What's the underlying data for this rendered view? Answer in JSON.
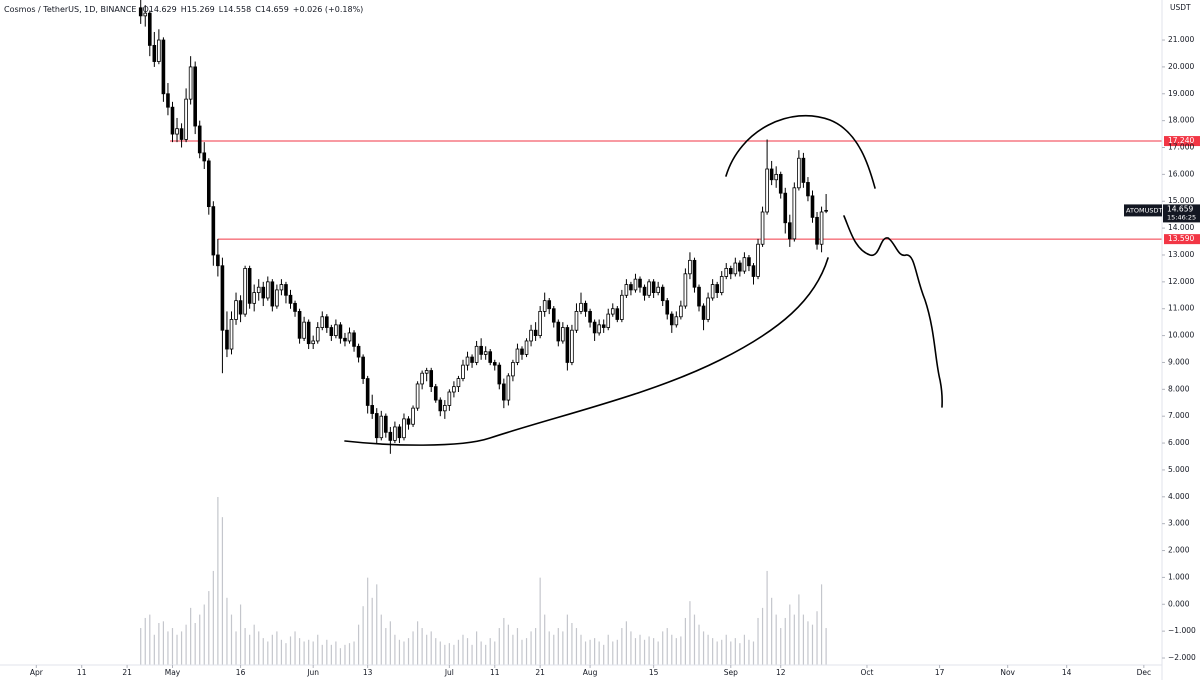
{
  "chart_data": {
    "type": "candlestick",
    "legend": {
      "symbol": "Cosmos / TetherUS, 1D, BINANCE",
      "open": "O14.629",
      "high": "H15.269",
      "low": "L14.558",
      "close": "C14.659",
      "change": "+0.026 (+0.18%)"
    },
    "currency": "USDT",
    "up_color": "#ffffff",
    "down_color": "#000000",
    "volume_color": "#c4c6cc",
    "x": [
      "04-24",
      "04-25",
      "04-26",
      "04-27",
      "04-28",
      "04-29",
      "04-30",
      "05-01",
      "05-02",
      "05-03",
      "05-04",
      "05-05",
      "05-06",
      "05-07",
      "05-08",
      "05-09",
      "05-10",
      "05-11",
      "05-12",
      "05-13",
      "05-14",
      "05-15",
      "05-16",
      "05-17",
      "05-18",
      "05-19",
      "05-20",
      "05-21",
      "05-22",
      "05-23",
      "05-24",
      "05-25",
      "05-26",
      "05-27",
      "05-28",
      "05-29",
      "05-30",
      "05-31",
      "06-01",
      "06-02",
      "06-03",
      "06-04",
      "06-05",
      "06-06",
      "06-07",
      "06-08",
      "06-09",
      "06-10",
      "06-11",
      "06-12",
      "06-13",
      "06-14",
      "06-15",
      "06-16",
      "06-17",
      "06-18",
      "06-19",
      "06-20",
      "06-21",
      "06-22",
      "06-23",
      "06-24",
      "06-25",
      "06-26",
      "06-27",
      "06-28",
      "06-29",
      "06-30",
      "07-01",
      "07-02",
      "07-03",
      "07-04",
      "07-05",
      "07-06",
      "07-07",
      "07-08",
      "07-09",
      "07-10",
      "07-11",
      "07-12",
      "07-13",
      "07-14",
      "07-15",
      "07-16",
      "07-17",
      "07-18",
      "07-19",
      "07-20",
      "07-21",
      "07-22",
      "07-23",
      "07-24",
      "07-25",
      "07-26",
      "07-27",
      "07-28",
      "07-29",
      "07-30",
      "07-31",
      "08-01",
      "08-02",
      "08-03",
      "08-04",
      "08-05",
      "08-06",
      "08-07",
      "08-08",
      "08-09",
      "08-10",
      "08-11",
      "08-12",
      "08-13",
      "08-14",
      "08-15",
      "08-16",
      "08-17",
      "08-18",
      "08-19",
      "08-20",
      "08-21",
      "08-22",
      "08-23",
      "08-24",
      "08-25",
      "08-26",
      "08-27",
      "08-28",
      "08-29",
      "08-30",
      "08-31",
      "09-01",
      "09-02",
      "09-03",
      "09-04",
      "09-05",
      "09-06",
      "09-07",
      "09-08",
      "09-09",
      "09-10",
      "09-11",
      "09-12",
      "09-13",
      "09-14",
      "09-15",
      "09-16",
      "09-17",
      "09-18",
      "09-19",
      "09-20",
      "09-21",
      "09-22"
    ],
    "candles": [
      [
        22.2,
        22.6,
        21.6,
        21.9
      ],
      [
        21.9,
        22.3,
        21.5,
        22.0
      ],
      [
        22.0,
        22.1,
        20.4,
        20.8
      ],
      [
        20.8,
        21.3,
        20.0,
        20.2
      ],
      [
        20.2,
        21.4,
        20.1,
        21.0
      ],
      [
        21.0,
        21.1,
        18.7,
        19.0
      ],
      [
        19.0,
        19.4,
        18.2,
        18.5
      ],
      [
        18.5,
        18.7,
        17.2,
        17.5
      ],
      [
        17.5,
        18.1,
        17.2,
        17.7
      ],
      [
        17.7,
        17.9,
        17.0,
        17.3
      ],
      [
        17.3,
        19.2,
        17.2,
        18.8
      ],
      [
        18.8,
        20.4,
        18.6,
        20.0
      ],
      [
        20.0,
        20.2,
        17.5,
        17.8
      ],
      [
        17.8,
        18.0,
        16.6,
        16.8
      ],
      [
        16.8,
        17.2,
        16.2,
        16.5
      ],
      [
        16.5,
        16.6,
        14.5,
        14.8
      ],
      [
        14.8,
        15.0,
        12.6,
        13.0
      ],
      [
        13.0,
        13.6,
        12.2,
        12.6
      ],
      [
        12.6,
        12.9,
        8.6,
        10.2
      ],
      [
        10.2,
        10.9,
        9.2,
        9.5
      ],
      [
        9.5,
        10.9,
        9.3,
        10.6
      ],
      [
        10.6,
        11.6,
        10.4,
        11.3
      ],
      [
        11.3,
        11.5,
        10.5,
        10.8
      ],
      [
        10.8,
        12.6,
        10.7,
        12.5
      ],
      [
        12.5,
        12.6,
        11.0,
        11.2
      ],
      [
        11.2,
        11.9,
        10.9,
        11.6
      ],
      [
        11.6,
        12.1,
        11.3,
        11.8
      ],
      [
        11.8,
        12.0,
        11.1,
        11.4
      ],
      [
        11.4,
        12.2,
        11.3,
        12.0
      ],
      [
        12.0,
        12.1,
        10.9,
        11.1
      ],
      [
        11.1,
        11.9,
        11.0,
        11.7
      ],
      [
        11.7,
        12.1,
        11.5,
        11.9
      ],
      [
        11.9,
        12.0,
        11.2,
        11.5
      ],
      [
        11.5,
        11.7,
        11.0,
        11.2
      ],
      [
        11.2,
        11.3,
        10.7,
        10.9
      ],
      [
        10.9,
        11.0,
        9.7,
        9.9
      ],
      [
        9.9,
        10.7,
        9.8,
        10.5
      ],
      [
        10.5,
        10.6,
        9.5,
        9.7
      ],
      [
        9.7,
        10.0,
        9.5,
        9.8
      ],
      [
        9.8,
        10.5,
        9.7,
        10.3
      ],
      [
        10.3,
        10.9,
        10.2,
        10.7
      ],
      [
        10.7,
        10.8,
        10.1,
        10.3
      ],
      [
        10.3,
        10.4,
        9.8,
        10.0
      ],
      [
        10.0,
        10.6,
        9.9,
        10.4
      ],
      [
        10.4,
        10.5,
        9.7,
        9.9
      ],
      [
        9.9,
        10.1,
        9.6,
        9.8
      ],
      [
        9.8,
        10.3,
        9.7,
        10.1
      ],
      [
        10.1,
        10.2,
        9.4,
        9.6
      ],
      [
        9.6,
        9.7,
        9.0,
        9.2
      ],
      [
        9.2,
        9.3,
        8.2,
        8.4
      ],
      [
        8.4,
        8.5,
        7.1,
        7.4
      ],
      [
        7.4,
        7.8,
        6.9,
        7.1
      ],
      [
        7.1,
        7.3,
        6.0,
        6.2
      ],
      [
        6.2,
        7.2,
        6.1,
        7.0
      ],
      [
        7.0,
        7.1,
        6.2,
        6.4
      ],
      [
        6.4,
        6.6,
        5.6,
        6.1
      ],
      [
        6.1,
        6.8,
        6.0,
        6.6
      ],
      [
        6.6,
        6.7,
        6.0,
        6.2
      ],
      [
        6.2,
        7.1,
        6.1,
        6.9
      ],
      [
        6.9,
        7.0,
        6.5,
        6.7
      ],
      [
        6.7,
        7.4,
        6.6,
        7.3
      ],
      [
        7.3,
        8.3,
        7.2,
        8.2
      ],
      [
        8.2,
        8.7,
        8.0,
        8.6
      ],
      [
        8.6,
        8.8,
        8.3,
        8.7
      ],
      [
        8.7,
        8.8,
        7.9,
        8.1
      ],
      [
        8.1,
        8.2,
        7.5,
        7.6
      ],
      [
        7.6,
        7.7,
        7.0,
        7.2
      ],
      [
        7.2,
        7.6,
        6.9,
        7.4
      ],
      [
        7.4,
        8.0,
        7.2,
        7.9
      ],
      [
        7.9,
        8.3,
        7.7,
        8.1
      ],
      [
        8.1,
        8.5,
        7.9,
        8.4
      ],
      [
        8.4,
        9.1,
        8.3,
        8.9
      ],
      [
        8.9,
        9.4,
        8.7,
        9.2
      ],
      [
        9.2,
        9.3,
        8.8,
        9.0
      ],
      [
        9.0,
        9.8,
        8.9,
        9.6
      ],
      [
        9.6,
        9.9,
        9.1,
        9.3
      ],
      [
        9.3,
        9.6,
        9.1,
        9.4
      ],
      [
        9.4,
        9.5,
        8.9,
        9.0
      ],
      [
        9.0,
        9.1,
        8.7,
        8.9
      ],
      [
        8.9,
        9.0,
        8.0,
        8.2
      ],
      [
        8.2,
        8.4,
        7.3,
        7.6
      ],
      [
        7.6,
        8.6,
        7.4,
        8.5
      ],
      [
        8.5,
        9.1,
        8.3,
        9.0
      ],
      [
        9.0,
        9.7,
        8.9,
        9.5
      ],
      [
        9.5,
        9.6,
        9.1,
        9.3
      ],
      [
        9.3,
        9.9,
        9.2,
        9.8
      ],
      [
        9.8,
        10.4,
        9.6,
        10.2
      ],
      [
        10.2,
        10.5,
        9.8,
        10.0
      ],
      [
        10.0,
        11.1,
        9.9,
        10.9
      ],
      [
        10.9,
        11.6,
        10.7,
        11.3
      ],
      [
        11.3,
        11.4,
        10.8,
        11.0
      ],
      [
        11.0,
        11.1,
        10.3,
        10.5
      ],
      [
        10.5,
        10.6,
        9.6,
        9.8
      ],
      [
        9.8,
        10.5,
        9.7,
        10.3
      ],
      [
        10.3,
        10.4,
        8.7,
        9.0
      ],
      [
        9.0,
        10.4,
        8.9,
        10.2
      ],
      [
        10.2,
        11.2,
        10.1,
        10.9
      ],
      [
        10.9,
        11.6,
        10.8,
        11.2
      ],
      [
        11.2,
        11.3,
        10.7,
        10.9
      ],
      [
        10.9,
        11.0,
        10.3,
        10.5
      ],
      [
        10.5,
        10.6,
        9.8,
        10.1
      ],
      [
        10.1,
        10.6,
        10.0,
        10.4
      ],
      [
        10.4,
        10.6,
        10.1,
        10.3
      ],
      [
        10.3,
        11.0,
        10.2,
        10.8
      ],
      [
        10.8,
        11.2,
        10.7,
        11.0
      ],
      [
        11.0,
        11.1,
        10.5,
        10.6
      ],
      [
        10.6,
        11.7,
        10.5,
        11.5
      ],
      [
        11.5,
        12.1,
        11.4,
        11.9
      ],
      [
        11.9,
        12.0,
        11.5,
        11.7
      ],
      [
        11.7,
        12.3,
        11.6,
        12.1
      ],
      [
        12.1,
        12.2,
        11.6,
        11.8
      ],
      [
        11.8,
        11.9,
        11.3,
        11.5
      ],
      [
        11.5,
        12.1,
        11.4,
        12.0
      ],
      [
        12.0,
        12.1,
        11.4,
        11.6
      ],
      [
        11.6,
        12.0,
        11.5,
        11.8
      ],
      [
        11.8,
        11.9,
        11.1,
        11.3
      ],
      [
        11.3,
        11.4,
        10.6,
        10.8
      ],
      [
        10.8,
        10.9,
        10.1,
        10.4
      ],
      [
        10.4,
        10.9,
        10.3,
        10.7
      ],
      [
        10.7,
        11.3,
        10.6,
        11.1
      ],
      [
        11.1,
        12.5,
        11.0,
        12.3
      ],
      [
        12.3,
        13.1,
        12.1,
        12.8
      ],
      [
        12.8,
        12.9,
        11.6,
        11.8
      ],
      [
        11.8,
        11.9,
        10.9,
        11.1
      ],
      [
        11.1,
        11.2,
        10.2,
        10.6
      ],
      [
        10.6,
        11.6,
        10.5,
        11.4
      ],
      [
        11.4,
        12.1,
        11.3,
        11.9
      ],
      [
        11.9,
        12.0,
        11.4,
        11.6
      ],
      [
        11.6,
        12.4,
        11.5,
        12.2
      ],
      [
        12.2,
        12.7,
        12.1,
        12.5
      ],
      [
        12.5,
        12.6,
        12.1,
        12.3
      ],
      [
        12.3,
        12.9,
        12.2,
        12.7
      ],
      [
        12.7,
        12.8,
        12.2,
        12.4
      ],
      [
        12.4,
        13.1,
        12.3,
        12.9
      ],
      [
        12.9,
        13.0,
        12.4,
        12.6
      ],
      [
        12.6,
        12.7,
        11.9,
        12.2
      ],
      [
        12.2,
        13.6,
        12.1,
        13.4
      ],
      [
        13.4,
        14.8,
        13.3,
        14.6
      ],
      [
        14.6,
        17.3,
        14.5,
        16.2
      ],
      [
        16.2,
        16.5,
        15.6,
        15.8
      ],
      [
        15.8,
        16.3,
        15.5,
        16.0
      ],
      [
        16.0,
        16.1,
        15.1,
        15.3
      ],
      [
        15.3,
        15.5,
        13.8,
        14.2
      ],
      [
        14.2,
        14.5,
        13.3,
        13.6
      ],
      [
        13.6,
        15.7,
        13.5,
        15.5
      ],
      [
        15.5,
        16.9,
        15.4,
        16.6
      ],
      [
        16.6,
        16.8,
        15.5,
        15.7
      ],
      [
        15.7,
        15.9,
        15.0,
        15.2
      ],
      [
        15.2,
        15.4,
        14.2,
        14.4
      ],
      [
        14.4,
        14.6,
        13.2,
        13.4
      ],
      [
        13.4,
        14.8,
        13.1,
        14.6
      ],
      [
        14.629,
        15.269,
        14.558,
        14.659
      ]
    ],
    "volume": [
      22,
      28,
      30,
      18,
      25,
      26,
      20,
      22,
      18,
      20,
      24,
      34,
      25,
      30,
      36,
      44,
      56,
      100,
      88,
      40,
      30,
      20,
      36,
      22,
      18,
      24,
      20,
      16,
      14,
      18,
      20,
      15,
      13,
      17,
      20,
      16,
      14,
      15,
      14,
      18,
      12,
      15,
      12,
      14,
      10,
      12,
      13,
      14,
      24,
      35,
      52,
      40,
      48,
      30,
      22,
      26,
      18,
      15,
      14,
      16,
      20,
      26,
      22,
      18,
      20,
      16,
      14,
      12,
      13,
      12,
      15,
      18,
      16,
      12,
      20,
      14,
      12,
      16,
      14,
      22,
      28,
      24,
      18,
      22,
      15,
      16,
      20,
      22,
      52,
      30,
      20,
      18,
      22,
      20,
      30,
      25,
      22,
      18,
      14,
      15,
      16,
      14,
      12,
      18,
      14,
      15,
      22,
      26,
      20,
      16,
      18,
      15,
      17,
      16,
      14,
      20,
      22,
      18,
      16,
      17,
      28,
      38,
      30,
      24,
      20,
      18,
      16,
      14,
      15,
      18,
      14,
      16,
      13,
      18,
      15,
      14,
      28,
      34,
      56,
      40,
      30,
      22,
      28,
      36,
      30,
      42,
      30,
      26,
      24,
      32,
      48,
      22
    ],
    "ylim": [
      -2.26,
      22.49
    ],
    "yticks": [
      {
        "value": 21,
        "label": "21.000"
      },
      {
        "value": 20,
        "label": "20.000"
      },
      {
        "value": 19,
        "label": "19.000"
      },
      {
        "value": 18,
        "label": "18.000"
      },
      {
        "value": 17,
        "label": "17.000"
      },
      {
        "value": 16,
        "label": "16.000"
      },
      {
        "value": 15,
        "label": "15.000"
      },
      {
        "value": 14,
        "label": "14.000"
      },
      {
        "value": 13,
        "label": "13.000"
      },
      {
        "value": 12,
        "label": "12.000"
      },
      {
        "value": 11,
        "label": "11.000"
      },
      {
        "value": 10,
        "label": "10.000"
      },
      {
        "value": 9,
        "label": "9.000"
      },
      {
        "value": 8,
        "label": "8.000"
      },
      {
        "value": 7,
        "label": "7.000"
      },
      {
        "value": 6,
        "label": "6.000"
      },
      {
        "value": 5,
        "label": "5.000"
      },
      {
        "value": 4,
        "label": "4.000"
      },
      {
        "value": 3,
        "label": "3.000"
      },
      {
        "value": 2,
        "label": "2.000"
      },
      {
        "value": 1,
        "label": "1.000"
      },
      {
        "value": 0,
        "label": "0.000"
      },
      {
        "value": -1,
        "label": "−1.000"
      },
      {
        "value": -2,
        "label": "−2.000"
      }
    ],
    "xlim": [
      "03-24",
      "12-05"
    ],
    "xticks": [
      {
        "value": "04-01",
        "label": "Apr"
      },
      {
        "value": "04-11",
        "label": "11"
      },
      {
        "value": "04-21",
        "label": "21"
      },
      {
        "value": "05-01",
        "label": "May"
      },
      {
        "value": "05-16",
        "label": "16"
      },
      {
        "value": "06-01",
        "label": "Jun"
      },
      {
        "value": "06-13",
        "label": "13"
      },
      {
        "value": "07-01",
        "label": "Jul"
      },
      {
        "value": "07-11",
        "label": "11"
      },
      {
        "value": "07-21",
        "label": "21"
      },
      {
        "value": "08-01",
        "label": "Aug"
      },
      {
        "value": "08-15",
        "label": "15"
      },
      {
        "value": "09-01",
        "label": "Sep"
      },
      {
        "value": "09-12",
        "label": "12"
      },
      {
        "value": "10-01",
        "label": "Oct"
      },
      {
        "value": "10-17",
        "label": "17"
      },
      {
        "value": "11-01",
        "label": "Nov"
      },
      {
        "value": "11-14",
        "label": "14"
      },
      {
        "value": "12-01",
        "label": "Dec"
      }
    ],
    "levels": [
      {
        "value": 17.24,
        "label": "17.240",
        "color": "#f23645"
      },
      {
        "value": 13.59,
        "label": "13.590",
        "color": "#f23645"
      }
    ],
    "price_tag": {
      "symbol": "ATOMUSDT",
      "price": "14.659",
      "countdown": "15:46:25"
    }
  }
}
